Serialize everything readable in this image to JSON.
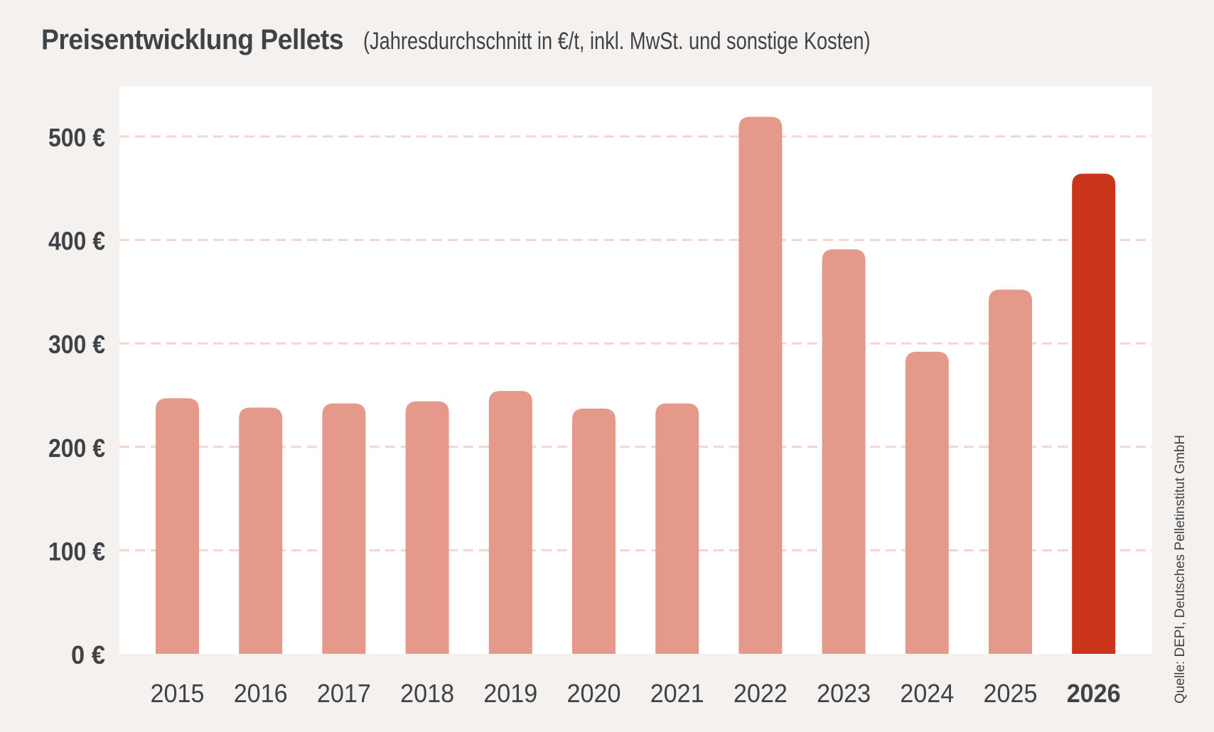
{
  "header": {
    "title": "Preisentwicklung Pellets",
    "subtitle": "(Jahresdurchschnitt in €/t, inkl. MwSt. und sonstige Kosten)"
  },
  "source": "Quelle: DEPI, Deutsches Pelletinstitut GmbH",
  "colors": {
    "bar": "#e5998b",
    "highlight": "#c9341a",
    "grid": "#f5d5cf",
    "plot_bg": "#ffffff",
    "page_bg": "#f4f1ee",
    "text": "#3f4347"
  },
  "chart_data": {
    "type": "bar",
    "title": "Preisentwicklung Pellets",
    "subtitle": "(Jahresdurchschnitt in €/t, inkl. MwSt. und sonstige Kosten)",
    "xlabel": "",
    "ylabel": "",
    "categories": [
      "2015",
      "2016",
      "2017",
      "2018",
      "2019",
      "2020",
      "2021",
      "2022",
      "2023",
      "2024",
      "2025",
      "2026"
    ],
    "values": [
      247,
      238,
      242,
      244,
      254,
      237,
      242,
      519,
      391,
      292,
      352,
      464
    ],
    "highlight": "2026",
    "ylim": [
      0,
      550
    ],
    "yticks": [
      0,
      100,
      200,
      300,
      400,
      500
    ],
    "ytick_labels": [
      "0 €",
      "100 €",
      "200 €",
      "300 €",
      "400 €",
      "500 €"
    ],
    "grid": true,
    "grid_style": "dashed",
    "legend": "none"
  }
}
